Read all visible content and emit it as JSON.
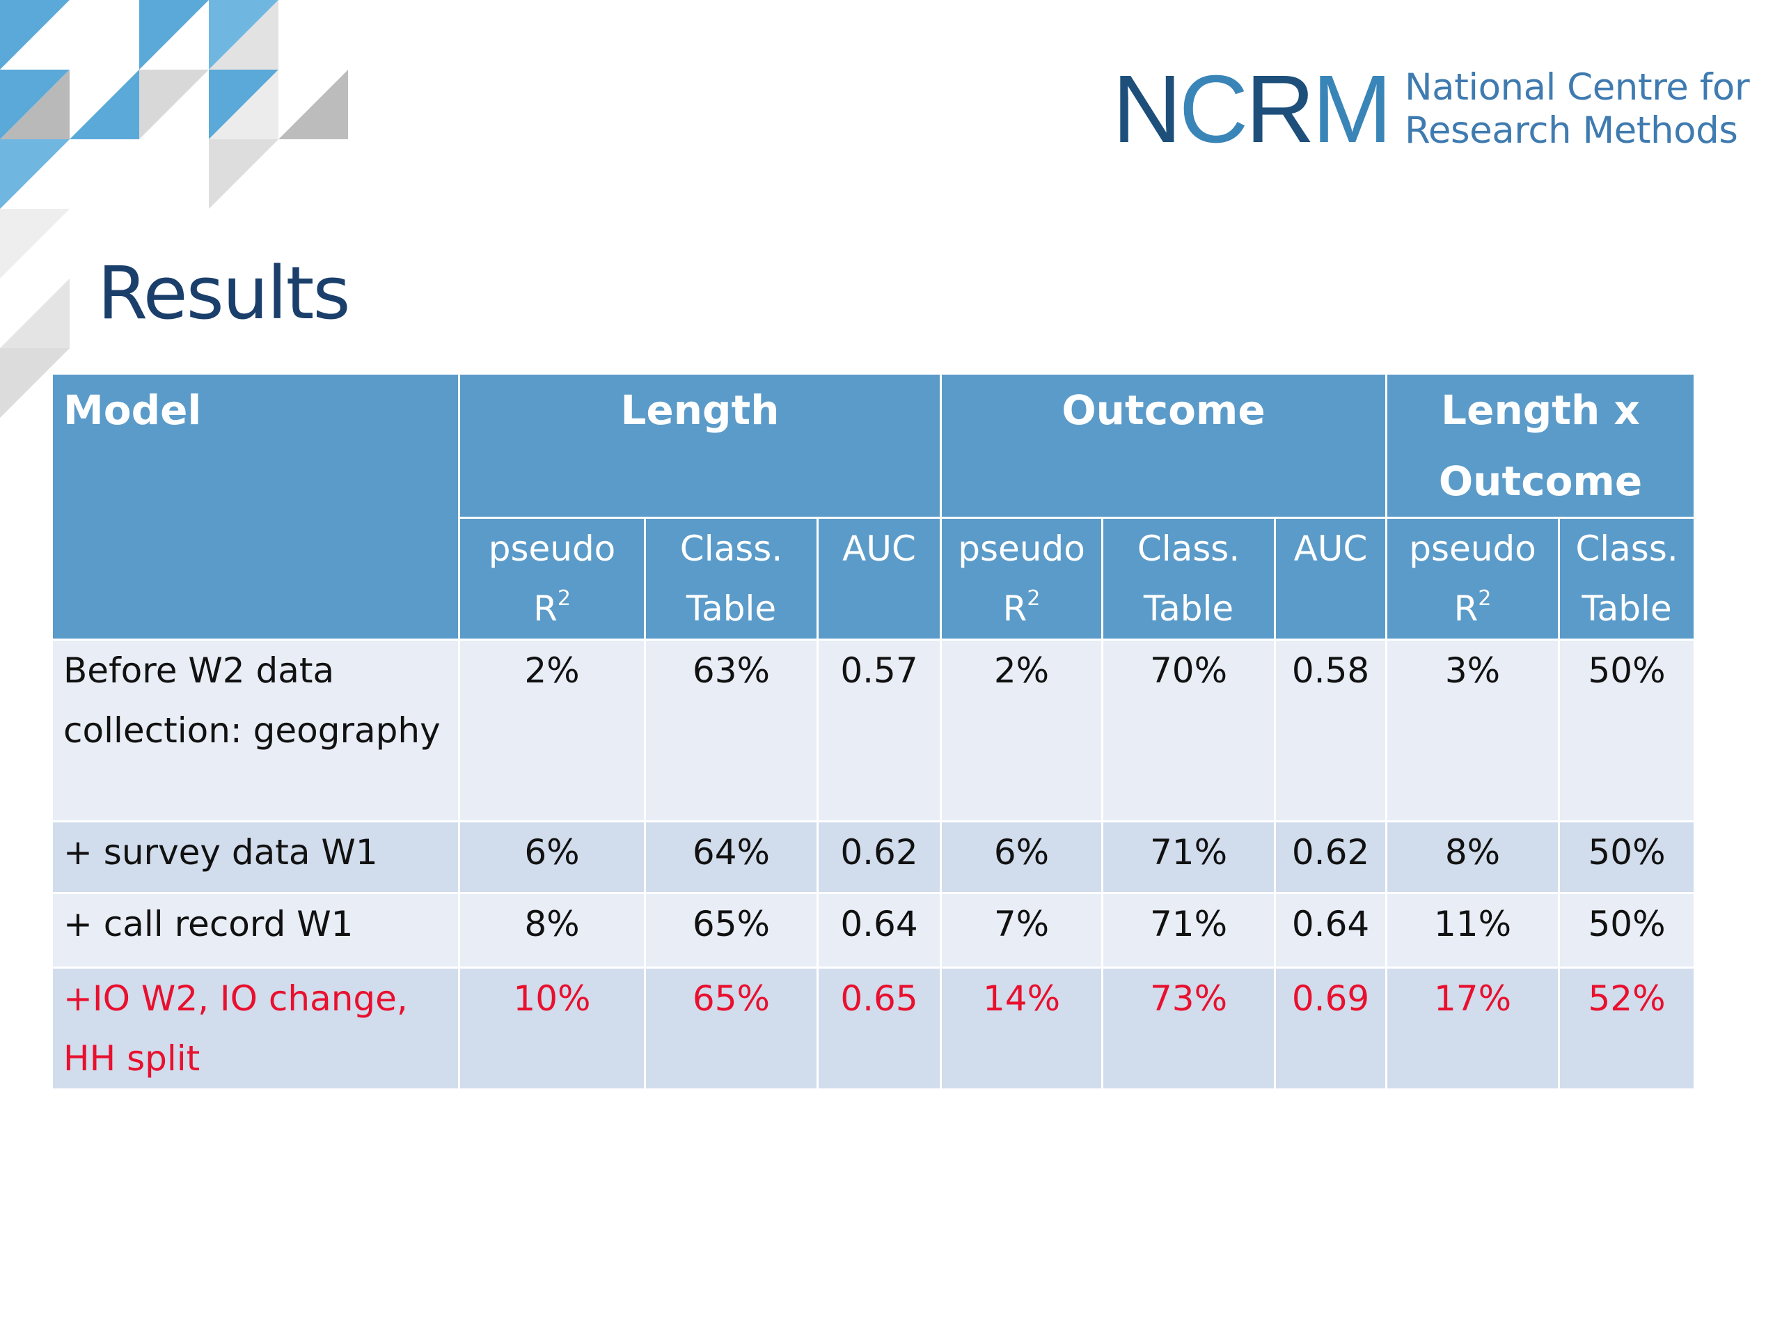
{
  "logo": {
    "mark": "NCRM",
    "text_line1": "National Centre for",
    "text_line2": "Research Methods"
  },
  "title": "Results",
  "table": {
    "model_header": "Model",
    "groups": [
      {
        "label": "Length"
      },
      {
        "label": "Outcome"
      },
      {
        "label": "Length x Outcome"
      }
    ],
    "subheaders": {
      "pseudo_line1": "pseudo",
      "pseudo_line2": "R",
      "pseudo_sup": "2",
      "class_line1": "Class.",
      "class_line2": "Table",
      "auc": "AUC"
    },
    "rows": [
      {
        "label": "Before  W2 data collection: geography",
        "values": [
          "2%",
          "63%",
          "0.57",
          "2%",
          "70%",
          "0.58",
          "3%",
          "50%"
        ]
      },
      {
        "label": "+ survey data W1",
        "values": [
          "6%",
          "64%",
          "0.62",
          "6%",
          "71%",
          "0.62",
          "8%",
          "50%"
        ]
      },
      {
        "label": "+ call record  W1",
        "values": [
          "8%",
          "65%",
          "0.64",
          "7%",
          "71%",
          "0.64",
          "11%",
          "50%"
        ]
      },
      {
        "label": "+IO W2, IO change, HH split",
        "values": [
          "10%",
          "65%",
          "0.65",
          "14%",
          "73%",
          "0.69",
          "17%",
          "52%"
        ]
      }
    ]
  },
  "colors": {
    "header_blue": "#5b9bc9",
    "row_light": "#e8edf6",
    "row_dark": "#d1dcec",
    "title_navy": "#1b3f6b",
    "highlight_red": "#e8102e"
  }
}
